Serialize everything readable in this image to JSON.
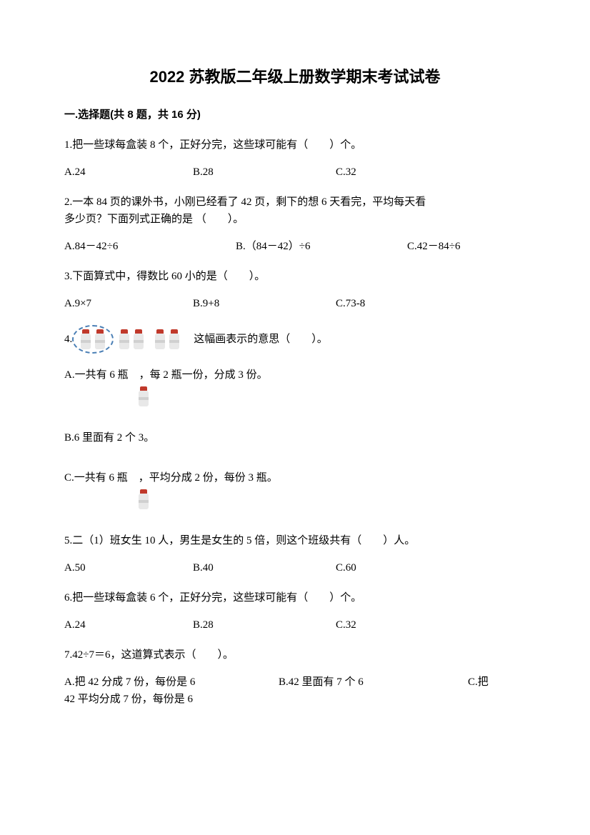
{
  "title": "2022 苏教版二年级上册数学期末考试试卷",
  "section1": {
    "header": "一.选择题(共 8 题，共 16 分)",
    "q1": {
      "text": "1.把一些球每盒装 8 个，正好分完，这些球可能有（　　）个。",
      "a": "A.24",
      "b": "B.28",
      "c": "C.32"
    },
    "q2": {
      "text1": "2.一本 84 页的课外书，小刚已经看了 42 页，剩下的想 6 天看完，平均每天看",
      "text2": "多少页？下面列式正确的是 （　　）。",
      "a": "A.84－42÷6",
      "b": "B.（84－42）÷6",
      "c": "C.42－84÷6"
    },
    "q3": {
      "text": "3.下面算式中，得数比 60 小的是（　　）。",
      "a": "A.9×7",
      "b": "B.9+8",
      "c": "C.73-8"
    },
    "q4": {
      "prefix": "4.",
      "suffix": "这幅画表示的意思（　　）。",
      "a": "A.一共有 6 瓶　，每 2 瓶一份，分成 3 份。",
      "b": "B.6 里面有 2 个 3。",
      "c": "C.一共有 6 瓶　，平均分成 2 份，每份 3 瓶。"
    },
    "q5": {
      "text": "5.二（1）班女生 10 人，男生是女生的 5 倍，则这个班级共有（　　）人。",
      "a": "A.50",
      "b": "B.40",
      "c": "C.60"
    },
    "q6": {
      "text": "6.把一些球每盒装 6 个，正好分完，这些球可能有（　　）个。",
      "a": "A.24",
      "b": "B.28",
      "c": "C.32"
    },
    "q7": {
      "text": "7.42÷7＝6，这道算式表示（　　）。",
      "a": "A.把 42 分成 7 份，每份是 6",
      "b": "B.42 里面有 7 个 6",
      "c": "C.把",
      "c2": "42 平均分成 7 份，每份是 6"
    }
  }
}
